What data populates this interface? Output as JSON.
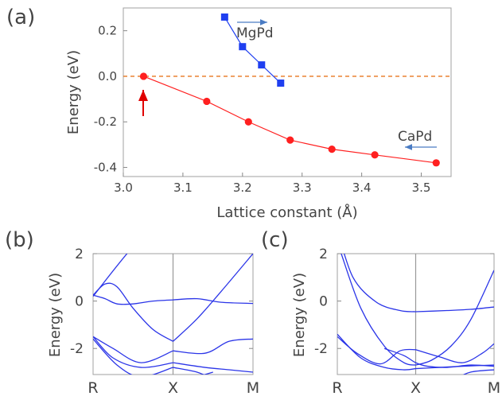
{
  "chart_data": [
    {
      "panel": "(a)",
      "type": "line",
      "xlabel": "Lattice constant (Å)",
      "ylabel": "Energy (eV)",
      "xlim": [
        3.0,
        3.55
      ],
      "ylim": [
        -0.44,
        0.3
      ],
      "x_ticks": [
        "3.0",
        "3.1",
        "3.2",
        "3.3",
        "3.4",
        "3.5"
      ],
      "y_ticks": [
        "0.2",
        "0.0",
        "-0.2",
        "-0.4"
      ],
      "reference_line": {
        "y": 0.0,
        "style": "dashed",
        "color": "#e8761e"
      },
      "series": [
        {
          "name": "MgPd",
          "color": "#1f3ff0",
          "marker": "square",
          "x": [
            3.17,
            3.2,
            3.232,
            3.264
          ],
          "y": [
            0.26,
            0.13,
            0.05,
            -0.03
          ]
        },
        {
          "name": "CaPd",
          "color": "#ff2020",
          "marker": "circle",
          "x": [
            3.034,
            3.14,
            3.21,
            3.28,
            3.35,
            3.422,
            3.525
          ],
          "y": [
            0.0,
            -0.11,
            -0.2,
            -0.28,
            -0.32,
            -0.345,
            -0.38
          ]
        }
      ],
      "annotations": [
        {
          "text": "MgPd",
          "arrow": "right",
          "color": "#4a7cc4"
        },
        {
          "text": "CaPd",
          "arrow": "left",
          "color": "#4a7cc4"
        },
        {
          "text": "",
          "arrow": "up",
          "color": "#e00000"
        }
      ]
    },
    {
      "panel": "(b)",
      "type": "line",
      "ylabel": "Energy (eV)",
      "ylim": [
        -3.1,
        2.0
      ],
      "y_ticks": [
        "2",
        "0",
        "-2"
      ],
      "k_labels": [
        "R",
        "X",
        "M"
      ],
      "k_positions": [
        0,
        1,
        2
      ],
      "bands": [
        {
          "x": [
            0,
            0.15,
            0.3,
            0.5,
            0.75,
            1.0
          ],
          "y": [
            0.25,
            0.72,
            0.6,
            -0.3,
            -1.2,
            -1.7
          ]
        },
        {
          "x": [
            0,
            0.15,
            0.3,
            0.5,
            0.75,
            1.0
          ],
          "y": [
            0.25,
            0.1,
            -0.12,
            -0.12,
            0.0,
            0.05
          ]
        },
        {
          "x": [
            0,
            0.5,
            1.0
          ],
          "y": [
            0.2,
            2.3,
            4.0
          ]
        },
        {
          "x": [
            1.0,
            1.3,
            1.6,
            2.0
          ],
          "y": [
            -1.7,
            -0.75,
            0.4,
            2.0
          ]
        },
        {
          "x": [
            1.0,
            1.3,
            1.6,
            2.0
          ],
          "y": [
            0.05,
            0.1,
            -0.05,
            -0.1
          ]
        },
        {
          "x": [
            0,
            0.25,
            0.6,
            1.0
          ],
          "y": [
            -1.5,
            -2.0,
            -2.6,
            -2.1
          ]
        },
        {
          "x": [
            0,
            0.25,
            0.6,
            1.0
          ],
          "y": [
            -1.5,
            -2.4,
            -2.8,
            -2.6
          ]
        },
        {
          "x": [
            0,
            0.3,
            0.6,
            1.0
          ],
          "y": [
            -1.6,
            -2.7,
            -3.2,
            -2.8
          ]
        },
        {
          "x": [
            1.0,
            1.4,
            1.7,
            2.0
          ],
          "y": [
            -2.1,
            -2.2,
            -1.7,
            -1.6
          ]
        },
        {
          "x": [
            1.0,
            1.4,
            1.7,
            2.0
          ],
          "y": [
            -2.6,
            -2.8,
            -2.9,
            -3.0
          ]
        },
        {
          "x": [
            1.0,
            1.3,
            1.5
          ],
          "y": [
            -2.8,
            -3.0,
            -3.3
          ]
        },
        {
          "x": [
            1.2,
            1.5
          ],
          "y": [
            -3.3,
            -3.0
          ]
        }
      ]
    },
    {
      "panel": "(c)",
      "type": "line",
      "ylabel": "Energy (eV)",
      "ylim": [
        -3.1,
        2.0
      ],
      "y_ticks": [
        "2",
        "0",
        "-2"
      ],
      "k_labels": [
        "R",
        "X",
        "M"
      ],
      "k_positions": [
        0,
        1,
        2
      ],
      "bands": [
        {
          "x": [
            0,
            0.2,
            0.5,
            0.8,
            1.0
          ],
          "y": [
            3.0,
            1.0,
            -0.05,
            -0.4,
            -0.45
          ]
        },
        {
          "x": [
            1.0,
            1.4,
            1.7,
            2.0
          ],
          "y": [
            -0.45,
            -0.4,
            -0.35,
            -0.25
          ]
        },
        {
          "x": [
            0.05,
            0.3,
            0.6,
            0.85,
            1.0
          ],
          "y": [
            2.0,
            -0.3,
            -1.9,
            -2.6,
            -2.7
          ]
        },
        {
          "x": [
            1.0,
            1.2,
            1.45,
            1.7,
            2.0
          ],
          "y": [
            -2.7,
            -2.5,
            -1.9,
            -0.8,
            1.3
          ]
        },
        {
          "x": [
            0,
            0.25,
            0.55,
            0.8,
            1.0
          ],
          "y": [
            -1.5,
            -2.2,
            -2.65,
            -2.1,
            -2.05
          ]
        },
        {
          "x": [
            1.0,
            1.3,
            1.6,
            1.85,
            2.0
          ],
          "y": [
            -2.05,
            -2.35,
            -2.6,
            -2.2,
            -1.8
          ]
        },
        {
          "x": [
            0,
            0.3,
            0.6,
            0.85,
            1.0
          ],
          "y": [
            -1.4,
            -2.4,
            -2.8,
            -2.9,
            -2.85
          ]
        },
        {
          "x": [
            1.0,
            1.3,
            1.6,
            2.0
          ],
          "y": [
            -2.85,
            -2.8,
            -2.75,
            -2.7
          ]
        },
        {
          "x": [
            0.6,
            0.85,
            1.0,
            1.15,
            1.4,
            1.7,
            2.0
          ],
          "y": [
            -2.0,
            -2.3,
            -2.6,
            -2.75,
            -2.8,
            -2.7,
            -2.75
          ]
        },
        {
          "x": [
            1.5,
            1.7,
            2.0
          ],
          "y": [
            -3.3,
            -3.0,
            -2.9
          ]
        }
      ]
    }
  ]
}
